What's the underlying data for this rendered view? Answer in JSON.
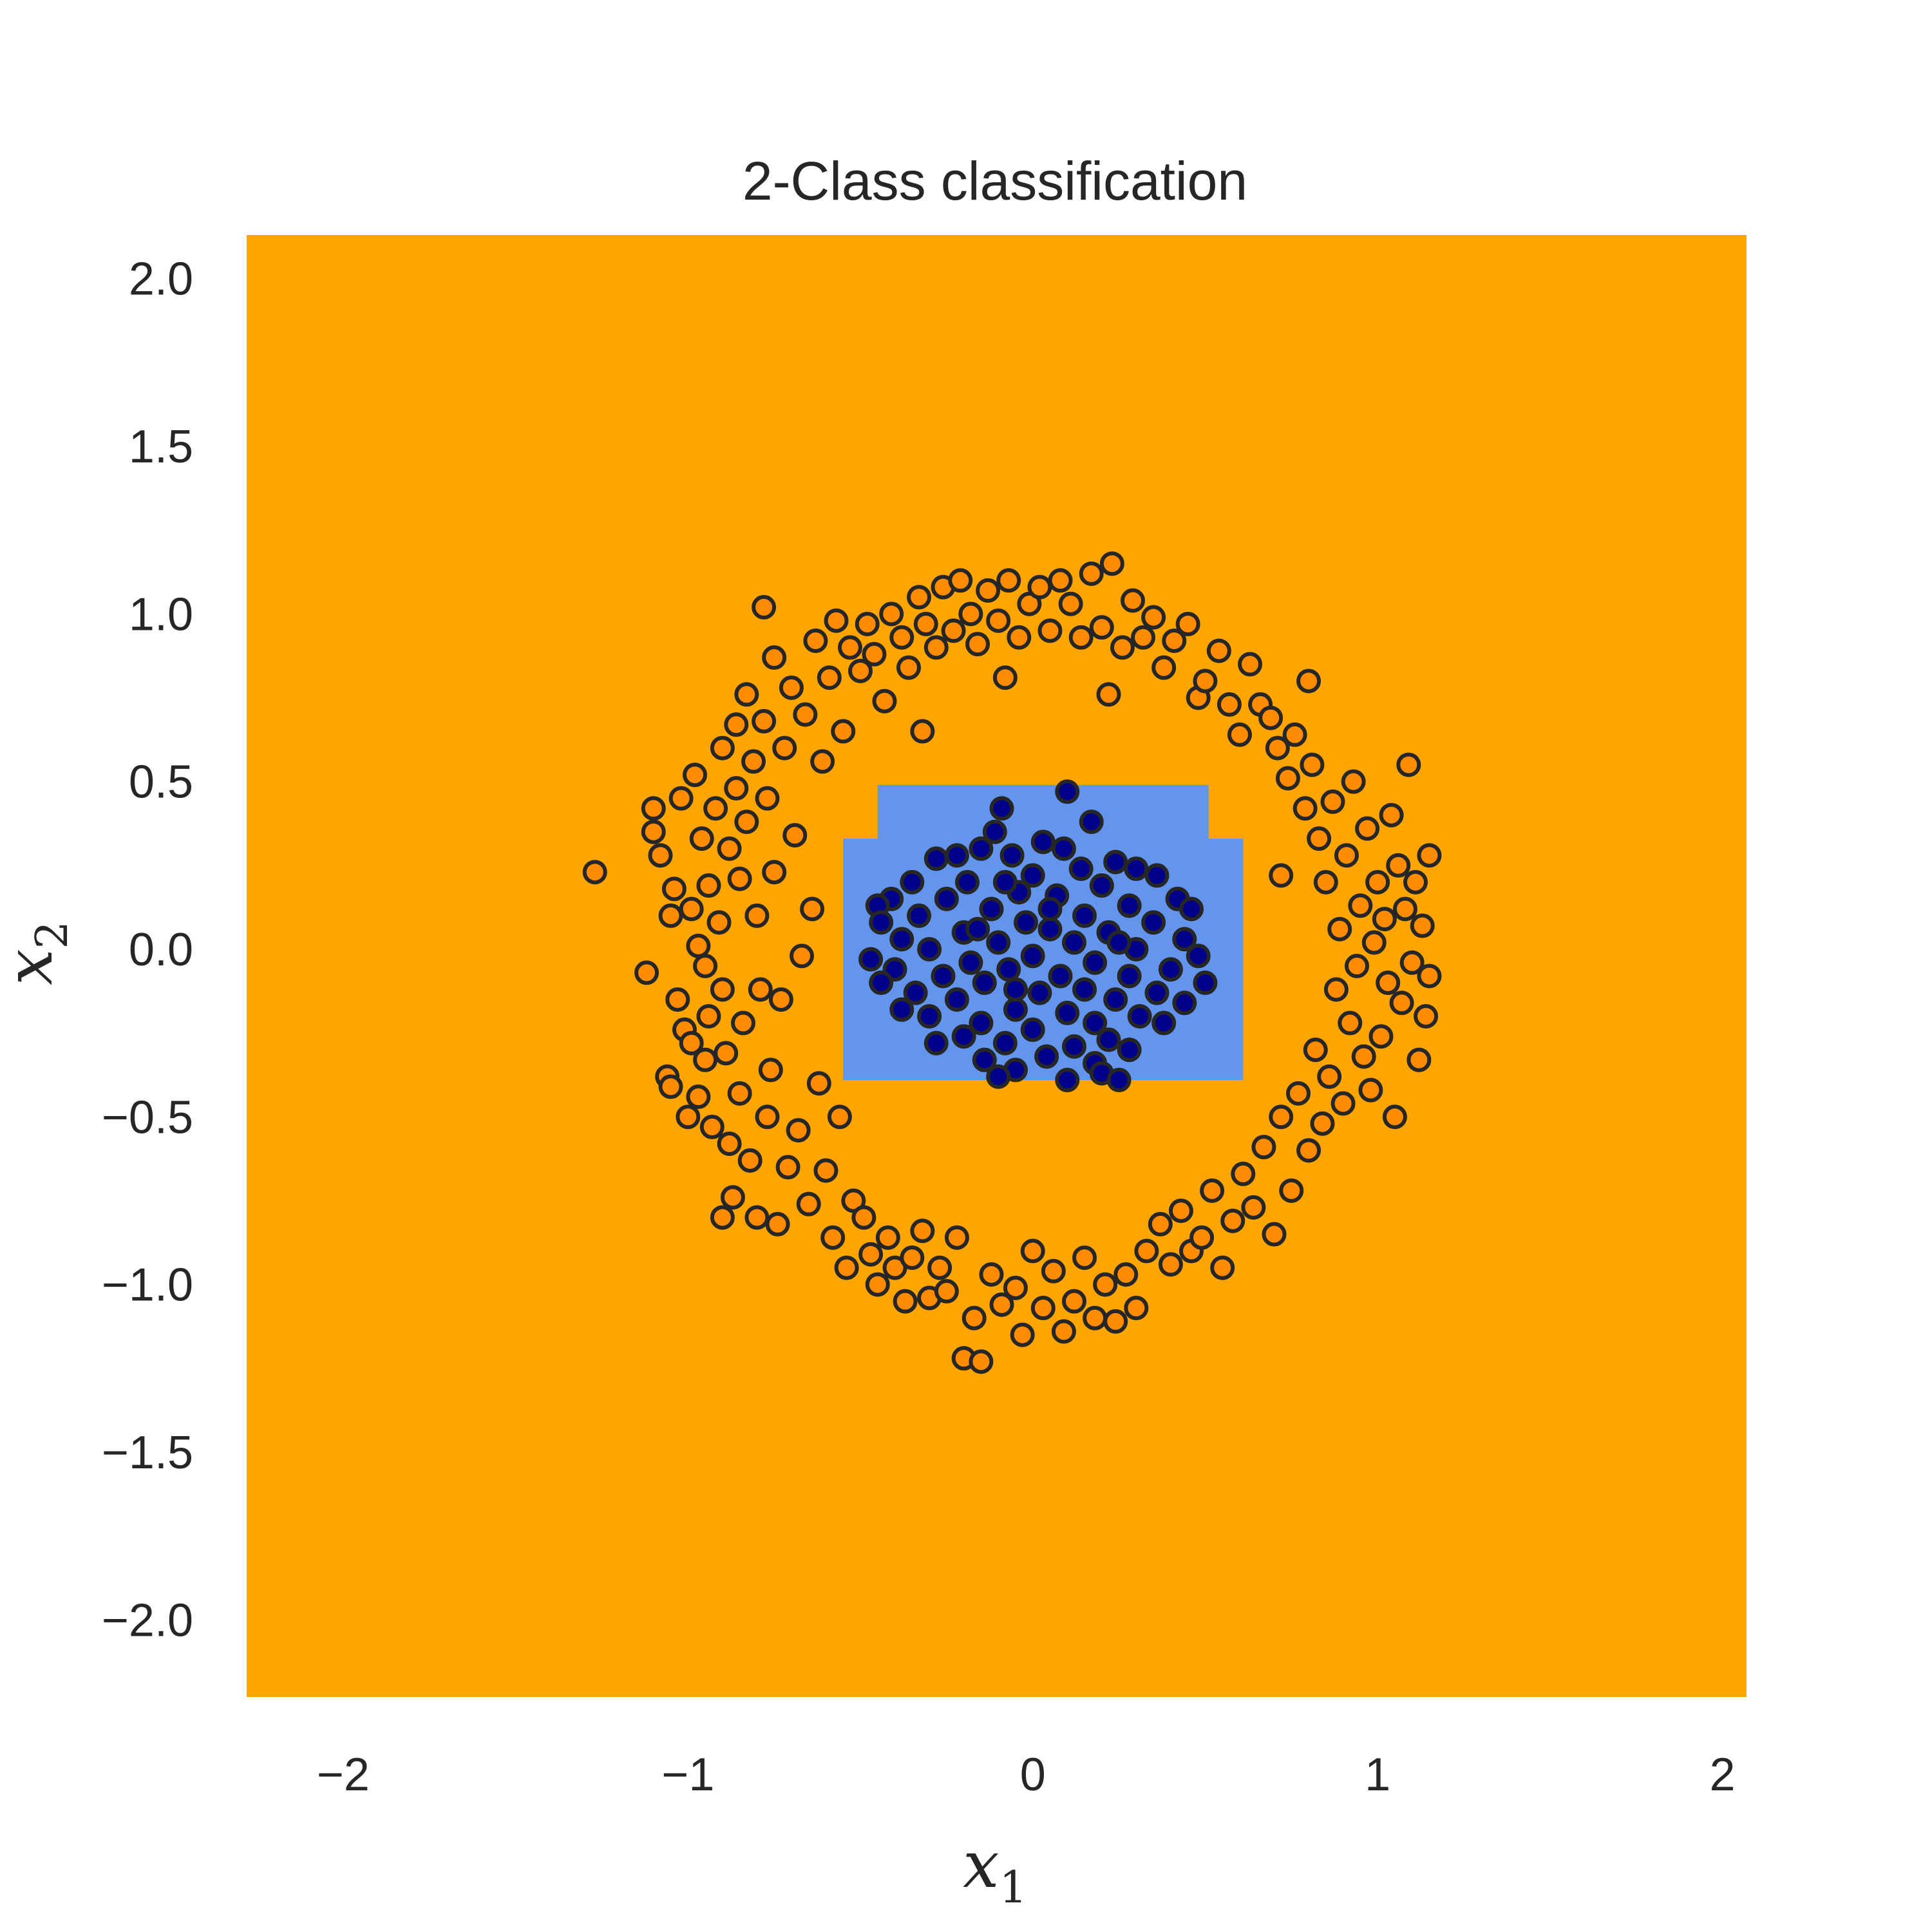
{
  "chart_data": {
    "type": "scatter",
    "title": "2-Class classification",
    "xlabel": {
      "base": "x",
      "sub": "1"
    },
    "ylabel": {
      "base": "x",
      "sub": "2"
    },
    "xlim": [
      -2.28,
      2.07
    ],
    "ylim": [
      -2.23,
      2.13
    ],
    "xticks": [
      -2,
      -1,
      0,
      1,
      2
    ],
    "xtick_labels": [
      "−2",
      "−1",
      "0",
      "1",
      "2"
    ],
    "yticks": [
      2.0,
      1.5,
      1.0,
      0.5,
      0.0,
      -0.5,
      -1.0,
      -1.5,
      -2.0
    ],
    "ytick_labels": [
      "2.0",
      "1.5",
      "1.0",
      "0.5",
      "0.0",
      "−0.5",
      "−1.0",
      "−1.5",
      "−2.0"
    ],
    "grid": false,
    "legend": "none",
    "colors": {
      "background_region": "#ffa500",
      "decision_region": "#6495ed",
      "class_outer_fill": "#ff8c00",
      "class_inner_fill": "#00008b",
      "marker_edge": "#262626"
    },
    "decision_region_polygon": [
      [
        -0.45,
        0.49
      ],
      [
        0.51,
        0.49
      ],
      [
        0.51,
        0.33
      ],
      [
        0.61,
        0.33
      ],
      [
        0.61,
        -0.39
      ],
      [
        -0.55,
        -0.39
      ],
      [
        -0.55,
        0.33
      ],
      [
        -0.45,
        0.33
      ]
    ],
    "series": [
      {
        "points": [
          [
            -1.27,
            0.23
          ],
          [
            -1.12,
            -0.07
          ],
          [
            -1.1,
            0.35
          ],
          [
            -1.1,
            0.42
          ],
          [
            -1.08,
            0.28
          ],
          [
            -1.06,
            -0.38
          ],
          [
            -1.05,
            0.1
          ],
          [
            -1.05,
            -0.41
          ],
          [
            -1.04,
            0.18
          ],
          [
            -1.03,
            -0.15
          ],
          [
            -1.02,
            0.45
          ],
          [
            -1.01,
            -0.24
          ],
          [
            -1.0,
            -0.5
          ],
          [
            -0.99,
            0.12
          ],
          [
            -0.99,
            -0.28
          ],
          [
            -0.98,
            0.52
          ],
          [
            -0.97,
            0.01
          ],
          [
            -0.97,
            -0.44
          ],
          [
            -0.96,
            0.33
          ],
          [
            -0.95,
            -0.05
          ],
          [
            -0.95,
            -0.33
          ],
          [
            -0.94,
            0.19
          ],
          [
            -0.94,
            -0.2
          ],
          [
            -0.93,
            -0.53
          ],
          [
            -0.92,
            0.42
          ],
          [
            -0.91,
            0.08
          ],
          [
            -0.9,
            0.6
          ],
          [
            -0.9,
            -0.12
          ],
          [
            -0.9,
            -0.8
          ],
          [
            -0.89,
            -0.31
          ],
          [
            -0.88,
            0.3
          ],
          [
            -0.88,
            -0.58
          ],
          [
            -0.87,
            -0.74
          ],
          [
            -0.86,
            0.48
          ],
          [
            -0.86,
            0.67
          ],
          [
            -0.85,
            0.21
          ],
          [
            -0.85,
            -0.43
          ],
          [
            -0.84,
            -0.22
          ],
          [
            -0.83,
            0.76
          ],
          [
            -0.83,
            0.38
          ],
          [
            -0.82,
            -0.63
          ],
          [
            -0.81,
            0.56
          ],
          [
            -0.8,
            0.1
          ],
          [
            -0.8,
            -0.8
          ],
          [
            -0.79,
            -0.12
          ],
          [
            -0.78,
            0.68
          ],
          [
            -0.77,
            0.45
          ],
          [
            -0.77,
            -0.5
          ],
          [
            -0.76,
            -0.36
          ],
          [
            -0.75,
            0.23
          ],
          [
            -0.75,
            0.87
          ],
          [
            -0.74,
            -0.82
          ],
          [
            -0.73,
            -0.15
          ],
          [
            -0.72,
            0.6
          ],
          [
            -0.71,
            -0.65
          ],
          [
            -0.7,
            0.78
          ],
          [
            -0.69,
            0.34
          ],
          [
            -0.68,
            -0.54
          ],
          [
            -0.67,
            -0.02
          ],
          [
            -0.66,
            0.7
          ],
          [
            -0.65,
            -0.76
          ],
          [
            -0.64,
            0.12
          ],
          [
            -0.63,
            0.92
          ],
          [
            -0.62,
            -0.4
          ],
          [
            -0.61,
            0.56
          ],
          [
            -0.6,
            -0.66
          ],
          [
            -0.59,
            0.81
          ],
          [
            -0.58,
            -0.86
          ],
          [
            -0.57,
            0.98
          ],
          [
            -0.56,
            -0.5
          ],
          [
            -0.55,
            0.65
          ],
          [
            -0.54,
            -0.95
          ],
          [
            -0.53,
            0.9
          ],
          [
            -0.52,
            -0.75
          ],
          [
            -0.5,
            0.83
          ],
          [
            -0.49,
            -0.8
          ],
          [
            -0.48,
            0.97
          ],
          [
            -0.47,
            -0.91
          ],
          [
            -0.46,
            0.88
          ],
          [
            -0.45,
            -1.0
          ],
          [
            -0.43,
            0.74
          ],
          [
            -0.42,
            -0.86
          ],
          [
            -0.41,
            1.0
          ],
          [
            -0.4,
            -0.95
          ],
          [
            -0.38,
            0.93
          ],
          [
            -0.37,
            -1.05
          ],
          [
            -0.36,
            0.84
          ],
          [
            -0.35,
            -0.92
          ],
          [
            -0.33,
            1.05
          ],
          [
            -0.32,
            -0.84
          ],
          [
            -0.31,
            0.97
          ],
          [
            -0.3,
            -1.04
          ],
          [
            -0.28,
            0.9
          ],
          [
            -0.27,
            -0.95
          ],
          [
            -0.26,
            1.08
          ],
          [
            -0.25,
            -1.02
          ],
          [
            -0.23,
            0.95
          ],
          [
            -0.22,
            -0.86
          ],
          [
            -0.21,
            1.1
          ],
          [
            -0.2,
            -1.22
          ],
          [
            -0.18,
            1.0
          ],
          [
            -0.17,
            -1.1
          ],
          [
            -0.16,
            0.91
          ],
          [
            -0.15,
            -1.23
          ],
          [
            -0.13,
            1.07
          ],
          [
            -0.12,
            -0.97
          ],
          [
            -0.1,
            0.98
          ],
          [
            -0.09,
            -1.06
          ],
          [
            -0.08,
            0.81
          ],
          [
            -0.07,
            1.1
          ],
          [
            -0.05,
            -1.01
          ],
          [
            -0.04,
            0.93
          ],
          [
            -0.03,
            -1.15
          ],
          [
            -0.01,
            1.03
          ],
          [
            0.0,
            -0.9
          ],
          [
            0.02,
            1.08
          ],
          [
            0.03,
            -1.07
          ],
          [
            0.05,
            0.95
          ],
          [
            0.06,
            -0.96
          ],
          [
            0.08,
            1.1
          ],
          [
            0.09,
            -1.14
          ],
          [
            0.11,
            1.03
          ],
          [
            0.12,
            -1.05
          ],
          [
            0.14,
            0.93
          ],
          [
            0.15,
            -0.92
          ],
          [
            0.17,
            1.12
          ],
          [
            0.18,
            -1.1
          ],
          [
            0.2,
            0.96
          ],
          [
            0.21,
            -1.0
          ],
          [
            0.23,
            1.15
          ],
          [
            0.24,
            -1.11
          ],
          [
            0.26,
            0.9
          ],
          [
            0.27,
            -0.97
          ],
          [
            0.29,
            1.04
          ],
          [
            0.3,
            -1.07
          ],
          [
            0.32,
            0.93
          ],
          [
            0.33,
            -0.9
          ],
          [
            0.35,
            0.99
          ],
          [
            0.37,
            -0.82
          ],
          [
            0.38,
            0.84
          ],
          [
            0.4,
            -0.94
          ],
          [
            0.41,
            0.92
          ],
          [
            0.43,
            -0.78
          ],
          [
            0.45,
            0.97
          ],
          [
            0.46,
            -0.9
          ],
          [
            0.48,
            0.75
          ],
          [
            0.49,
            -0.86
          ],
          [
            0.5,
            0.8
          ],
          [
            0.52,
            -0.72
          ],
          [
            0.54,
            0.89
          ],
          [
            0.55,
            -0.95
          ],
          [
            0.57,
            0.73
          ],
          [
            0.58,
            -0.81
          ],
          [
            0.6,
            0.64
          ],
          [
            0.61,
            -0.67
          ],
          [
            0.63,
            0.85
          ],
          [
            0.64,
            -0.77
          ],
          [
            0.66,
            0.73
          ],
          [
            0.67,
            -0.59
          ],
          [
            0.69,
            0.69
          ],
          [
            0.7,
            -0.85
          ],
          [
            0.71,
            0.6
          ],
          [
            0.72,
            -0.5
          ],
          [
            0.74,
            0.51
          ],
          [
            0.75,
            -0.72
          ],
          [
            0.76,
            0.64
          ],
          [
            0.77,
            -0.43
          ],
          [
            0.79,
            0.42
          ],
          [
            0.8,
            -0.6
          ],
          [
            0.81,
            0.55
          ],
          [
            0.82,
            -0.3
          ],
          [
            0.83,
            0.33
          ],
          [
            0.84,
            -0.52
          ],
          [
            0.85,
            0.2
          ],
          [
            0.86,
            -0.38
          ],
          [
            0.87,
            0.44
          ],
          [
            0.88,
            -0.12
          ],
          [
            0.89,
            0.06
          ],
          [
            0.9,
            -0.46
          ],
          [
            0.91,
            0.28
          ],
          [
            0.92,
            -0.22
          ],
          [
            0.93,
            0.5
          ],
          [
            0.94,
            -0.05
          ],
          [
            0.95,
            0.13
          ],
          [
            0.96,
            -0.32
          ],
          [
            0.97,
            0.36
          ],
          [
            0.98,
            -0.42
          ],
          [
            0.99,
            0.02
          ],
          [
            1.0,
            0.2
          ],
          [
            1.01,
            -0.26
          ],
          [
            1.02,
            0.09
          ],
          [
            1.03,
            -0.1
          ],
          [
            1.04,
            0.4
          ],
          [
            1.05,
            -0.5
          ],
          [
            1.06,
            0.25
          ],
          [
            1.07,
            -0.16
          ],
          [
            1.08,
            0.12
          ],
          [
            1.09,
            0.55
          ],
          [
            1.1,
            -0.04
          ],
          [
            1.11,
            0.2
          ],
          [
            1.12,
            -0.33
          ],
          [
            1.13,
            0.07
          ],
          [
            1.14,
            -0.2
          ],
          [
            1.15,
            0.28
          ],
          [
            1.15,
            -0.08
          ],
          [
            0.72,
            0.22
          ],
          [
            0.8,
            0.8
          ],
          [
            -0.78,
            1.02
          ],
          [
            0.22,
            0.76
          ],
          [
            -0.32,
            0.65
          ]
        ]
      },
      {
        "points": [
          [
            0.1,
            0.47
          ],
          [
            -0.09,
            0.42
          ],
          [
            0.17,
            0.38
          ],
          [
            -0.11,
            0.35
          ],
          [
            0.03,
            0.32
          ],
          [
            -0.22,
            0.28
          ],
          [
            0.24,
            0.26
          ],
          [
            -0.28,
            0.27
          ],
          [
            0.09,
            0.3
          ],
          [
            -0.15,
            0.3
          ],
          [
            0.3,
            0.24
          ],
          [
            -0.06,
            0.28
          ],
          [
            0.14,
            0.24
          ],
          [
            -0.35,
            0.2
          ],
          [
            0.36,
            0.22
          ],
          [
            0.0,
            0.22
          ],
          [
            -0.19,
            0.2
          ],
          [
            0.2,
            0.19
          ],
          [
            -0.41,
            0.15
          ],
          [
            0.42,
            0.15
          ],
          [
            -0.04,
            0.17
          ],
          [
            0.07,
            0.16
          ],
          [
            -0.25,
            0.15
          ],
          [
            0.28,
            0.13
          ],
          [
            -0.45,
            0.13
          ],
          [
            0.46,
            0.12
          ],
          [
            -0.12,
            0.12
          ],
          [
            0.15,
            0.1
          ],
          [
            -0.33,
            0.1
          ],
          [
            0.35,
            0.08
          ],
          [
            -0.02,
            0.08
          ],
          [
            -0.44,
            0.08
          ],
          [
            0.05,
            0.06
          ],
          [
            -0.2,
            0.05
          ],
          [
            0.22,
            0.05
          ],
          [
            0.44,
            0.03
          ],
          [
            -0.38,
            0.03
          ],
          [
            -0.1,
            0.02
          ],
          [
            0.12,
            0.02
          ],
          [
            0.3,
            0.0
          ],
          [
            -0.3,
            0.0
          ],
          [
            0.48,
            -0.02
          ],
          [
            -0.47,
            -0.03
          ],
          [
            0.0,
            -0.02
          ],
          [
            -0.18,
            -0.04
          ],
          [
            0.18,
            -0.04
          ],
          [
            0.4,
            -0.06
          ],
          [
            -0.4,
            -0.06
          ],
          [
            -0.07,
            -0.06
          ],
          [
            0.08,
            -0.08
          ],
          [
            0.28,
            -0.08
          ],
          [
            -0.26,
            -0.08
          ],
          [
            0.5,
            -0.1
          ],
          [
            -0.44,
            -0.1
          ],
          [
            -0.14,
            -0.1
          ],
          [
            0.15,
            -0.12
          ],
          [
            0.36,
            -0.13
          ],
          [
            -0.34,
            -0.13
          ],
          [
            0.02,
            -0.13
          ],
          [
            -0.22,
            -0.15
          ],
          [
            0.24,
            -0.15
          ],
          [
            0.44,
            -0.16
          ],
          [
            -0.38,
            -0.18
          ],
          [
            -0.05,
            -0.18
          ],
          [
            0.1,
            -0.19
          ],
          [
            0.31,
            -0.2
          ],
          [
            -0.3,
            -0.2
          ],
          [
            0.18,
            -0.22
          ],
          [
            -0.15,
            -0.22
          ],
          [
            0.0,
            -0.24
          ],
          [
            0.38,
            -0.22
          ],
          [
            -0.2,
            -0.26
          ],
          [
            0.22,
            -0.27
          ],
          [
            -0.08,
            -0.28
          ],
          [
            0.12,
            -0.29
          ],
          [
            -0.28,
            -0.28
          ],
          [
            0.28,
            -0.3
          ],
          [
            0.04,
            -0.32
          ],
          [
            -0.14,
            -0.33
          ],
          [
            0.18,
            -0.34
          ],
          [
            -0.05,
            -0.36
          ],
          [
            0.2,
            -0.37
          ],
          [
            -0.1,
            -0.38
          ],
          [
            0.1,
            -0.39
          ],
          [
            0.25,
            -0.39
          ],
          [
            -0.08,
            0.2
          ],
          [
            0.05,
            0.12
          ],
          [
            -0.16,
            0.06
          ],
          [
            0.25,
            0.02
          ],
          [
            -0.05,
            -0.12
          ]
        ]
      }
    ]
  }
}
